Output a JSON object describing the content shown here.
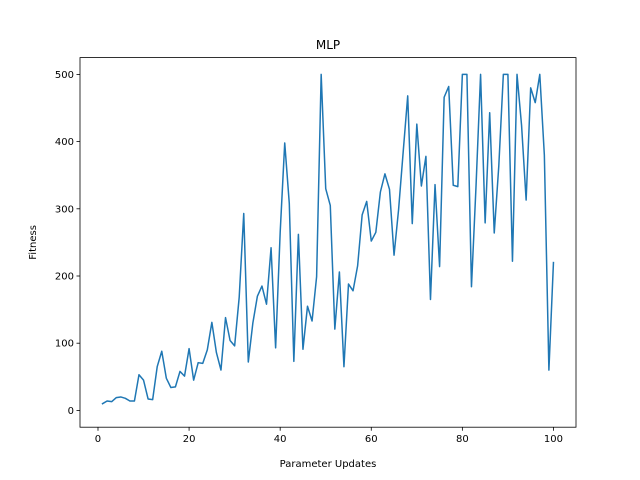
{
  "chart_data": {
    "type": "line",
    "title": "MLP",
    "xlabel": "Parameter Updates",
    "ylabel": "Fitness",
    "xlim": [
      -3.95,
      104.95
    ],
    "ylim": [
      -25,
      525
    ],
    "xticks": [
      0,
      20,
      40,
      60,
      80,
      100
    ],
    "yticks": [
      0,
      100,
      200,
      300,
      400,
      500
    ],
    "grid": false,
    "line_color": "#1f77b4",
    "series": [
      {
        "x": [
          1,
          2,
          3,
          4,
          5,
          6,
          7,
          8,
          9,
          10,
          11,
          12,
          13,
          14,
          15,
          16,
          17,
          18,
          19,
          20,
          21,
          22,
          23,
          24,
          25,
          26,
          27,
          28,
          29,
          30,
          31,
          32,
          33,
          34,
          35,
          36,
          37,
          38,
          39,
          40,
          41,
          42,
          43,
          44,
          45,
          46,
          47,
          48,
          49,
          50,
          51,
          52,
          53,
          54,
          55,
          56,
          57,
          58,
          59,
          60,
          61,
          62,
          63,
          64,
          65,
          66,
          67,
          68,
          69,
          70,
          71,
          72,
          73,
          74,
          75,
          76,
          77,
          78,
          79,
          80,
          81,
          82,
          83,
          84,
          85,
          86,
          87,
          88,
          89,
          90,
          91,
          92,
          93,
          94,
          95,
          96,
          97,
          98,
          99,
          100
        ],
        "values": [
          10,
          14,
          13,
          19,
          20,
          18,
          14,
          14,
          53,
          45,
          17,
          16,
          65,
          88,
          48,
          34,
          35,
          58,
          51,
          92,
          45,
          71,
          70,
          90,
          131,
          86,
          60,
          138,
          104,
          96,
          168,
          293,
          72,
          130,
          170,
          185,
          158,
          242,
          93,
          265,
          398,
          308,
          73,
          262,
          91,
          155,
          133,
          199,
          500,
          330,
          305,
          121,
          206,
          65,
          188,
          178,
          215,
          291,
          311,
          252,
          265,
          325,
          352,
          329,
          231,
          299,
          384,
          468,
          278,
          426,
          334,
          378,
          165,
          336,
          214,
          466,
          482,
          335,
          333,
          500,
          500,
          184,
          334,
          500,
          279,
          443,
          264,
          364,
          500,
          500,
          222,
          500,
          424,
          313,
          480,
          458,
          500,
          380,
          60,
          220
        ]
      }
    ]
  }
}
